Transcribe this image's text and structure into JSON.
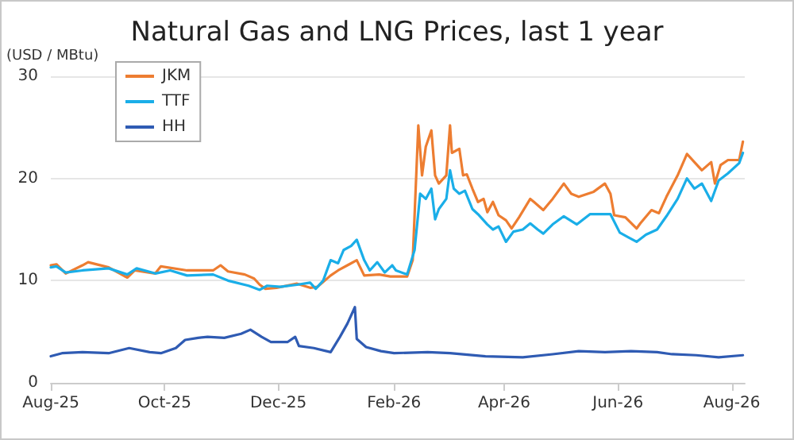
{
  "chart_data": {
    "type": "line",
    "title": "Natural Gas and LNG Prices, last 1 year",
    "ylabel": "(USD / MBtu)",
    "xlim": [
      "2025-08-01",
      "2026-08-08"
    ],
    "xticks": [
      {
        "value": "2025-08-01",
        "label": "Aug-25"
      },
      {
        "value": "2025-10-01",
        "label": "Oct-25"
      },
      {
        "value": "2025-12-01",
        "label": "Dec-25"
      },
      {
        "value": "2026-02-01",
        "label": "Feb-26"
      },
      {
        "value": "2026-04-01",
        "label": "Apr-26"
      },
      {
        "value": "2026-06-01",
        "label": "Jun-26"
      },
      {
        "value": "2026-08-01",
        "label": "Aug-26"
      }
    ],
    "ylim": [
      0,
      30
    ],
    "yticks": [
      0,
      10,
      20,
      30
    ],
    "grid": "y",
    "legend": "top left",
    "marker": "none",
    "line_style": "solid",
    "series": [
      {
        "name": "JKM",
        "color": "#ed7d31",
        "x": [
          "2025-08-01",
          "2025-08-04",
          "2025-08-09",
          "2025-08-18",
          "2025-08-21",
          "2025-09-01",
          "2025-09-11",
          "2025-09-15",
          "2025-09-26",
          "2025-09-29",
          "2025-10-13",
          "2025-10-27",
          "2025-10-31",
          "2025-11-04",
          "2025-11-13",
          "2025-11-18",
          "2025-11-21",
          "2025-11-24",
          "2025-11-30",
          "2025-12-11",
          "2025-12-18",
          "2025-12-22",
          "2025-12-29",
          "2026-01-02",
          "2026-01-08",
          "2026-01-12",
          "2026-01-16",
          "2026-01-24",
          "2026-01-30",
          "2026-02-08",
          "2026-02-11",
          "2026-02-14",
          "2026-02-16",
          "2026-02-18",
          "2026-02-21",
          "2026-02-23",
          "2026-02-25",
          "2026-03-01",
          "2026-03-03",
          "2026-03-04",
          "2026-03-08",
          "2026-03-10",
          "2026-03-12",
          "2026-03-15",
          "2026-03-18",
          "2026-03-21",
          "2026-03-23",
          "2026-03-26",
          "2026-03-29",
          "2026-04-02",
          "2026-04-05",
          "2026-04-09",
          "2026-04-15",
          "2026-04-17",
          "2026-04-22",
          "2026-04-27",
          "2026-05-03",
          "2026-05-07",
          "2026-05-11",
          "2026-05-19",
          "2026-05-25",
          "2026-05-28",
          "2026-05-30",
          "2026-06-05",
          "2026-06-11",
          "2026-06-13",
          "2026-06-19",
          "2026-06-23",
          "2026-06-27",
          "2026-07-03",
          "2026-07-08",
          "2026-07-12",
          "2026-07-16",
          "2026-07-21",
          "2026-07-23",
          "2026-07-26",
          "2026-07-30",
          "2026-08-05",
          "2026-08-07"
        ],
        "values": [
          11.5,
          11.6,
          10.7,
          11.5,
          11.8,
          11.3,
          10.3,
          11.0,
          10.7,
          11.4,
          11.0,
          11.0,
          11.5,
          10.9,
          10.6,
          10.2,
          9.6,
          9.2,
          9.3,
          9.7,
          9.3,
          9.4,
          10.5,
          11.0,
          11.6,
          12.0,
          10.5,
          10.6,
          10.4,
          10.4,
          12.0,
          25.2,
          20.3,
          23.1,
          24.7,
          20.3,
          19.5,
          20.3,
          25.2,
          22.5,
          22.9,
          20.3,
          20.4,
          19.0,
          17.7,
          18.0,
          16.7,
          17.7,
          16.4,
          15.9,
          15.1,
          16.2,
          18.0,
          17.7,
          16.9,
          18.0,
          19.5,
          18.5,
          18.2,
          18.7,
          19.5,
          18.5,
          16.4,
          16.2,
          15.1,
          15.6,
          16.9,
          16.6,
          18.2,
          20.3,
          22.4,
          21.6,
          20.8,
          21.6,
          19.5,
          21.3,
          21.8,
          21.8,
          23.6
        ]
      },
      {
        "name": "TTF",
        "color": "#1aaee8",
        "x": [
          "2025-08-01",
          "2025-08-04",
          "2025-08-09",
          "2025-08-18",
          "2025-09-01",
          "2025-09-11",
          "2025-09-16",
          "2025-09-26",
          "2025-10-04",
          "2025-10-13",
          "2025-10-27",
          "2025-11-04",
          "2025-11-15",
          "2025-11-21",
          "2025-11-25",
          "2025-12-02",
          "2025-12-11",
          "2025-12-18",
          "2025-12-21",
          "2025-12-25",
          "2025-12-29",
          "2026-01-02",
          "2026-01-05",
          "2026-01-09",
          "2026-01-12",
          "2026-01-16",
          "2026-01-19",
          "2026-01-23",
          "2026-01-27",
          "2026-01-31",
          "2026-02-02",
          "2026-02-08",
          "2026-02-12",
          "2026-02-15",
          "2026-02-18",
          "2026-02-21",
          "2026-02-23",
          "2026-02-25",
          "2026-03-01",
          "2026-03-03",
          "2026-03-05",
          "2026-03-08",
          "2026-03-11",
          "2026-03-15",
          "2026-03-18",
          "2026-03-23",
          "2026-03-26",
          "2026-03-29",
          "2026-04-02",
          "2026-04-06",
          "2026-04-11",
          "2026-04-15",
          "2026-04-19",
          "2026-04-22",
          "2026-04-27",
          "2026-05-03",
          "2026-05-10",
          "2026-05-17",
          "2026-05-24",
          "2026-05-28",
          "2026-06-02",
          "2026-06-07",
          "2026-06-11",
          "2026-06-16",
          "2026-06-22",
          "2026-06-27",
          "2026-07-03",
          "2026-07-08",
          "2026-07-12",
          "2026-07-16",
          "2026-07-21",
          "2026-07-25",
          "2026-07-30",
          "2026-08-05",
          "2026-08-07"
        ],
        "values": [
          11.3,
          11.4,
          10.8,
          11.0,
          11.2,
          10.6,
          11.2,
          10.7,
          11.0,
          10.5,
          10.6,
          10.0,
          9.5,
          9.1,
          9.5,
          9.4,
          9.6,
          9.8,
          9.2,
          10.0,
          12.0,
          11.7,
          13.0,
          13.4,
          14.0,
          12.0,
          11.0,
          11.8,
          10.8,
          11.5,
          11.0,
          10.6,
          13.0,
          18.5,
          18.0,
          19.0,
          16.0,
          17.0,
          18.0,
          20.8,
          19.0,
          18.5,
          18.8,
          17.0,
          16.5,
          15.5,
          15.0,
          15.3,
          13.8,
          14.8,
          15.0,
          15.6,
          15.0,
          14.6,
          15.5,
          16.3,
          15.5,
          16.5,
          16.5,
          16.5,
          14.7,
          14.2,
          13.8,
          14.5,
          15.0,
          16.3,
          18.0,
          20.0,
          19.0,
          19.5,
          17.8,
          19.8,
          20.5,
          21.5,
          22.5
        ]
      },
      {
        "name": "HH",
        "color": "#2f5bb3",
        "x": [
          "2025-08-01",
          "2025-08-07",
          "2025-08-18",
          "2025-09-01",
          "2025-09-12",
          "2025-09-23",
          "2025-09-29",
          "2025-10-07",
          "2025-10-12",
          "2025-10-19",
          "2025-10-24",
          "2025-11-02",
          "2025-11-11",
          "2025-11-16",
          "2025-11-22",
          "2025-11-27",
          "2025-12-06",
          "2025-12-10",
          "2025-12-12",
          "2025-12-20",
          "2025-12-29",
          "2026-01-03",
          "2026-01-07",
          "2026-01-11",
          "2026-01-12",
          "2026-01-17",
          "2026-01-25",
          "2026-02-01",
          "2026-02-19",
          "2026-03-03",
          "2026-03-22",
          "2026-04-11",
          "2026-04-27",
          "2026-05-11",
          "2026-05-25",
          "2026-06-08",
          "2026-06-22",
          "2026-06-30",
          "2026-07-13",
          "2026-07-25",
          "2026-08-07"
        ],
        "values": [
          2.6,
          2.9,
          3.0,
          2.9,
          3.4,
          3.0,
          2.9,
          3.4,
          4.2,
          4.4,
          4.5,
          4.4,
          4.8,
          5.2,
          4.5,
          4.0,
          4.0,
          4.5,
          3.6,
          3.4,
          3.0,
          4.5,
          5.8,
          7.4,
          4.3,
          3.5,
          3.1,
          2.9,
          3.0,
          2.9,
          2.6,
          2.5,
          2.8,
          3.1,
          3.0,
          3.1,
          3.0,
          2.8,
          2.7,
          2.5,
          2.7
        ]
      }
    ]
  }
}
